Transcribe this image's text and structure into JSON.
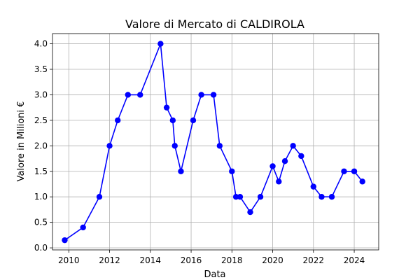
{
  "chart_data": {
    "type": "line",
    "title": "Valore di Mercato di CALDIROLA",
    "xlabel": "Data",
    "ylabel": "Valore in Milioni €",
    "xlim": [
      2009.2,
      2025.2
    ],
    "ylim": [
      -0.04,
      4.2
    ],
    "x_ticks": [
      "2010",
      "2012",
      "2014",
      "2016",
      "2018",
      "2020",
      "2022",
      "2024"
    ],
    "y_ticks": [
      "0.0",
      "0.5",
      "1.0",
      "1.5",
      "2.0",
      "2.5",
      "3.0",
      "3.5",
      "4.0"
    ],
    "grid": true,
    "legend": false,
    "colors": {
      "series": "#0000ff",
      "grid": "#b0b0b0",
      "axis": "#000000"
    },
    "series": [
      {
        "points": [
          {
            "x": 2009.8,
            "y": 0.15
          },
          {
            "x": 2010.7,
            "y": 0.4
          },
          {
            "x": 2011.5,
            "y": 1.0
          },
          {
            "x": 2012.0,
            "y": 2.0
          },
          {
            "x": 2012.4,
            "y": 2.5
          },
          {
            "x": 2012.9,
            "y": 3.0
          },
          {
            "x": 2013.5,
            "y": 3.0
          },
          {
            "x": 2014.5,
            "y": 4.0
          },
          {
            "x": 2014.8,
            "y": 2.75
          },
          {
            "x": 2015.1,
            "y": 2.5
          },
          {
            "x": 2015.2,
            "y": 2.0
          },
          {
            "x": 2015.5,
            "y": 1.5
          },
          {
            "x": 2016.1,
            "y": 2.5
          },
          {
            "x": 2016.5,
            "y": 3.0
          },
          {
            "x": 2017.1,
            "y": 3.0
          },
          {
            "x": 2017.4,
            "y": 2.0
          },
          {
            "x": 2018.0,
            "y": 1.5
          },
          {
            "x": 2018.2,
            "y": 1.0
          },
          {
            "x": 2018.4,
            "y": 1.0
          },
          {
            "x": 2018.9,
            "y": 0.7
          },
          {
            "x": 2019.4,
            "y": 1.0
          },
          {
            "x": 2020.0,
            "y": 1.6
          },
          {
            "x": 2020.3,
            "y": 1.3
          },
          {
            "x": 2020.6,
            "y": 1.7
          },
          {
            "x": 2021.0,
            "y": 2.0
          },
          {
            "x": 2021.4,
            "y": 1.8
          },
          {
            "x": 2022.0,
            "y": 1.2
          },
          {
            "x": 2022.4,
            "y": 1.0
          },
          {
            "x": 2022.9,
            "y": 1.0
          },
          {
            "x": 2023.5,
            "y": 1.5
          },
          {
            "x": 2024.0,
            "y": 1.5
          },
          {
            "x": 2024.4,
            "y": 1.3
          }
        ]
      }
    ]
  }
}
